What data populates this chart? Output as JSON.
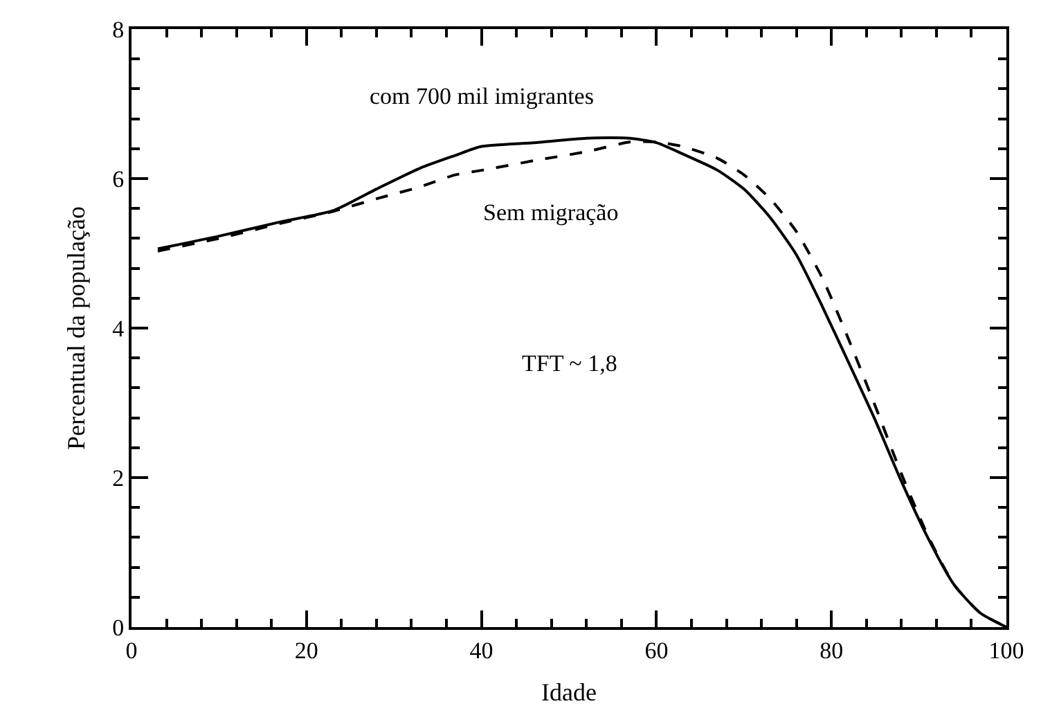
{
  "chart_data": {
    "type": "line",
    "xlabel": "Idade",
    "ylabel": "Percentual da população",
    "xlim": [
      0,
      100
    ],
    "ylim": [
      0,
      8
    ],
    "xticks": [
      0,
      {
        "value": 4,
        "label": null
      },
      {
        "value": 8,
        "label": null
      },
      {
        "value": 12,
        "label": null
      },
      {
        "value": 16,
        "label": null
      },
      20,
      {
        "value": 24,
        "label": null
      },
      {
        "value": 28,
        "label": null
      },
      {
        "value": 32,
        "label": null
      },
      {
        "value": 36,
        "label": null
      },
      40,
      {
        "value": 44,
        "label": null
      },
      {
        "value": 48,
        "label": null
      },
      {
        "value": 52,
        "label": null
      },
      {
        "value": 56,
        "label": null
      },
      60,
      {
        "value": 64,
        "label": null
      },
      {
        "value": 68,
        "label": null
      },
      {
        "value": 72,
        "label": null
      },
      {
        "value": 76,
        "label": null
      },
      80,
      {
        "value": 84,
        "label": null
      },
      {
        "value": 88,
        "label": null
      },
      {
        "value": 92,
        "label": null
      },
      {
        "value": 96,
        "label": null
      },
      100
    ],
    "yticks": [
      0,
      {
        "value": 0.4,
        "label": null
      },
      {
        "value": 0.8,
        "label": null
      },
      {
        "value": 1.2,
        "label": null
      },
      {
        "value": 1.6,
        "label": null
      },
      2,
      {
        "value": 2.4,
        "label": null
      },
      {
        "value": 2.8,
        "label": null
      },
      {
        "value": 3.2,
        "label": null
      },
      {
        "value": 3.6,
        "label": null
      },
      4,
      {
        "value": 4.4,
        "label": null
      },
      {
        "value": 4.8,
        "label": null
      },
      {
        "value": 5.2,
        "label": null
      },
      {
        "value": 5.6,
        "label": null
      },
      6,
      {
        "value": 6.4,
        "label": null
      },
      {
        "value": 6.8,
        "label": null
      },
      {
        "value": 7.2,
        "label": null
      },
      {
        "value": 7.6,
        "label": null
      },
      8
    ],
    "x": [
      3,
      10,
      17,
      23,
      28,
      33,
      37,
      40,
      46,
      52,
      57,
      60,
      63,
      67,
      70,
      73,
      76,
      79,
      82,
      85,
      88,
      91,
      94,
      97,
      100
    ],
    "series": [
      {
        "name": "com 700 mil imigrantes",
        "color": "#000000",
        "line_style": "solid",
        "values": [
          5.06,
          5.23,
          5.42,
          5.57,
          5.86,
          6.14,
          6.31,
          6.43,
          6.48,
          6.54,
          6.54,
          6.48,
          6.33,
          6.11,
          5.86,
          5.48,
          4.98,
          4.28,
          3.53,
          2.77,
          1.95,
          1.2,
          0.57,
          0.19,
          0
        ]
      },
      {
        "name": "Sem migração",
        "color": "#000000",
        "line_style": "dashed",
        "values": [
          5.03,
          5.2,
          5.4,
          5.56,
          5.73,
          5.89,
          6.05,
          6.11,
          6.24,
          6.36,
          6.49,
          6.49,
          6.43,
          6.27,
          6.05,
          5.73,
          5.29,
          4.66,
          3.84,
          2.96,
          2.05,
          1.23,
          0.57,
          0.19,
          0
        ]
      }
    ],
    "annotations": [
      "TFT ~ 1,8"
    ],
    "marker": "none",
    "legend": false
  }
}
